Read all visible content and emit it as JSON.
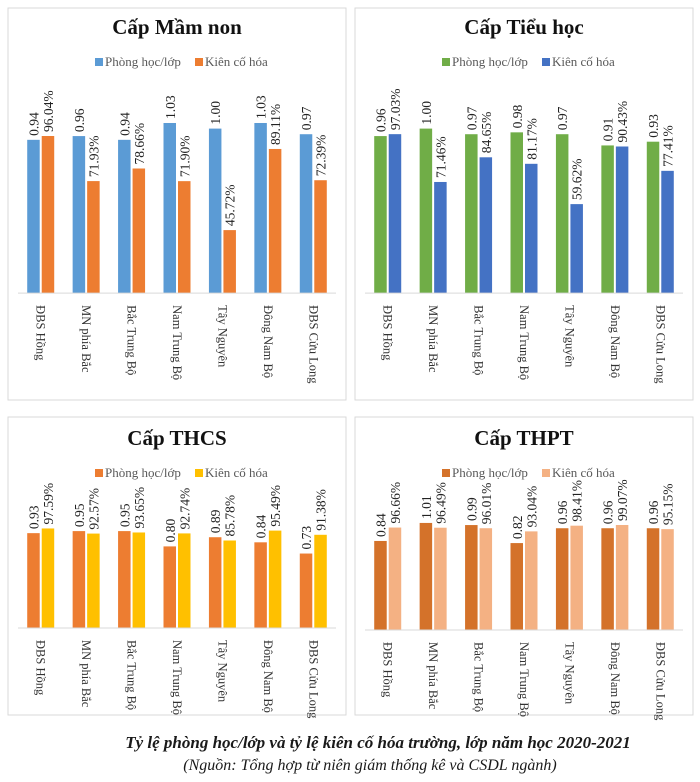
{
  "chart_data": [
    {
      "type": "bar",
      "title": "Cấp Mầm non",
      "categories": [
        "ĐBS Hồng",
        "MN phía Bắc",
        "Bắc Trung Bộ",
        "Nam Trung Bộ",
        "Tây Nguyên",
        "Đông Nam Bộ",
        "ĐBS Cửu Long"
      ],
      "series": [
        {
          "name": "Phòng học/lớp",
          "color": "#5B9BD5",
          "values": [
            0.94,
            0.96,
            0.94,
            1.03,
            1.0,
            1.03,
            0.97
          ],
          "labels": [
            "0.94",
            "0.96",
            "0.94",
            "1.03",
            "1.00",
            "1.03",
            "0.97"
          ]
        },
        {
          "name": "Kiên cố hóa",
          "color": "#ED7D31",
          "values": [
            0.9604,
            0.7193,
            0.7866,
            0.719,
            0.4572,
            0.8911,
            0.7239
          ],
          "labels": [
            "96.04%",
            "71.93%",
            "78.66%",
            "71.90%",
            "45.72%",
            "89.11%",
            "72.39%"
          ]
        }
      ],
      "legend": "top"
    },
    {
      "type": "bar",
      "title": "Cấp Tiểu học",
      "categories": [
        "ĐBS Hồng",
        "MN phía Bắc",
        "Bắc Trung Bộ",
        "Nam Trung Bộ",
        "Tây Nguyên",
        "Đông Nam Bộ",
        "ĐBS Cửu Long"
      ],
      "series": [
        {
          "name": "Phòng học/lớp",
          "color": "#70AD47",
          "values": [
            0.96,
            1.0,
            0.97,
            0.98,
            0.97,
            0.91,
            0.93
          ],
          "labels": [
            "0.96",
            "1.00",
            "0.97",
            "0.98",
            "0.97",
            "0.91",
            "0.93"
          ]
        },
        {
          "name": "Kiên cố hóa",
          "color": "#4472C4",
          "values": [
            0.9703,
            0.7146,
            0.8465,
            0.8117,
            0.5962,
            0.9043,
            0.7741
          ],
          "labels": [
            "97.03%",
            "71.46%",
            "84.65%",
            "81.17%",
            "59.62%",
            "90.43%",
            "77.41%"
          ]
        }
      ],
      "legend": "top"
    },
    {
      "type": "bar",
      "title": "Cấp THCS",
      "categories": [
        "ĐBS Hồng",
        "MN phía Bắc",
        "Bắc Trung Bộ",
        "Nam Trung Bộ",
        "Tây Nguyên",
        "Đông Nam Bộ",
        "ĐBS Cửu Long"
      ],
      "series": [
        {
          "name": "Phòng học/lớp",
          "color": "#ED7D31",
          "values": [
            0.93,
            0.95,
            0.95,
            0.8,
            0.89,
            0.84,
            0.73
          ],
          "labels": [
            "0.93",
            "0.95",
            "0.95",
            "0.80",
            "0.89",
            "0.84",
            "0.73"
          ]
        },
        {
          "name": "Kiên cố hóa",
          "color": "#FFC000",
          "values": [
            0.9759,
            0.9257,
            0.9365,
            0.9274,
            0.8578,
            0.9549,
            0.9138
          ],
          "labels": [
            "97.59%",
            "92.57%",
            "93.65%",
            "92.74%",
            "85.78%",
            "95.49%",
            "91.38%"
          ]
        }
      ],
      "legend": "top"
    },
    {
      "type": "bar",
      "title": "Cấp THPT",
      "categories": [
        "ĐBS Hồng",
        "MN phía Bắc",
        "Bắc Trung Bộ",
        "Nam Trung Bộ",
        "Tây Nguyên",
        "Đông Nam Bộ",
        "ĐBS Cửu Long"
      ],
      "series": [
        {
          "name": "Phòng học/lớp",
          "color": "#D4722A",
          "values": [
            0.84,
            1.01,
            0.99,
            0.82,
            0.96,
            0.96,
            0.96
          ],
          "labels": [
            "0.84",
            "1.01",
            "0.99",
            "0.82",
            "0.96",
            "0.96",
            "0.96"
          ]
        },
        {
          "name": "Kiên cố hóa",
          "color": "#F4B183",
          "values": [
            0.9666,
            0.9649,
            0.9601,
            0.9304,
            0.9841,
            0.9907,
            0.9515
          ],
          "labels": [
            "96.66%",
            "96.49%",
            "96.01%",
            "93.04%",
            "98.41%",
            "99.07%",
            "95.15%"
          ]
        }
      ],
      "legend": "top"
    }
  ],
  "caption": {
    "title": "Tỷ lệ phòng học/lớp và tỷ lệ kiên cố hóa trường, lớp năm học 2020-2021",
    "source": "(Nguồn: Tổng hợp từ niên giám thống kê và CSDL ngành)"
  }
}
